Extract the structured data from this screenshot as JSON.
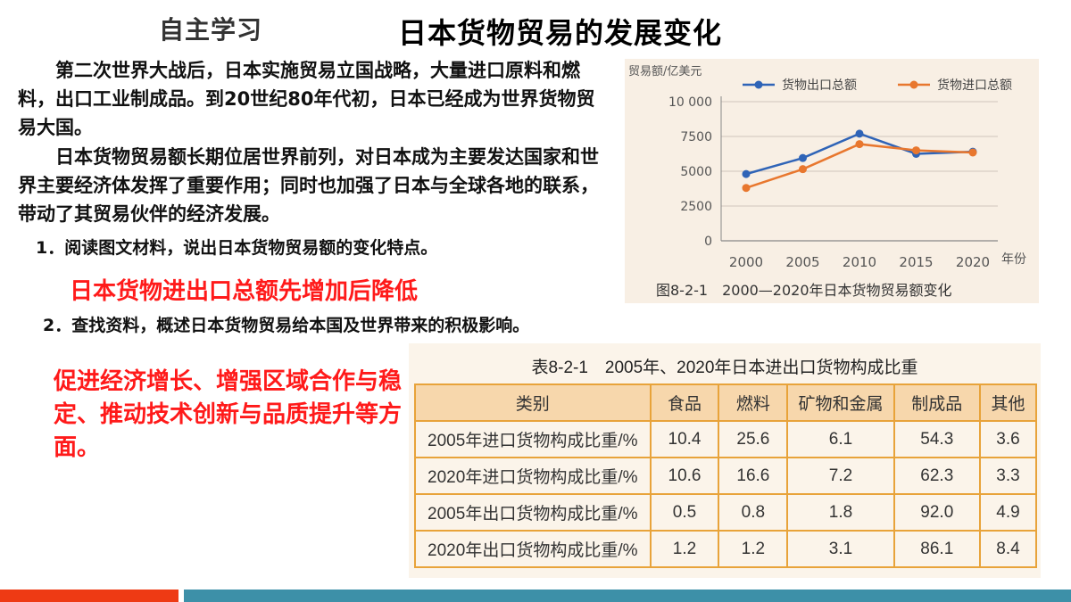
{
  "header": {
    "tag": "自主学习",
    "title": "日本货物贸易的发展变化"
  },
  "body": {
    "paragraph1": "　　第二次世界大战后，日本实施贸易立国战略，大量进口原料和燃料，出口工业制成品。到20世纪80年代初，日本已经成为世界货物贸易大国。",
    "paragraph2": "　　日本货物贸易额长期位居世界前列，对日本成为主要发达国家和世界主要经济体发挥了重要作用；同时也加强了日本与全球各地的联系，带动了其贸易伙伴的经济发展。"
  },
  "questions": {
    "q1": "1．阅读图文材料，说出日本货物贸易额的变化特点。",
    "a1": "日本货物进出口总额先增加后降低",
    "q2": "2．查找资料，概述日本货物贸易给本国及世界带来的积极影响。",
    "a2": "促进经济增长、增强区域合作与稳定、推动技术创新与品质提升等方面。"
  },
  "chart_data": {
    "type": "line",
    "title": "",
    "caption": "图8-2-1　2000—2020年日本货物贸易额变化",
    "ylabel": "贸易额/亿美元",
    "xlabel": "年份",
    "x": [
      2000,
      2005,
      2010,
      2015,
      2020
    ],
    "ylim": [
      0,
      10000
    ],
    "yticks": [
      0,
      2500,
      5000,
      7500,
      10000
    ],
    "ytick_labels": [
      "0",
      "2500",
      "5000",
      "7500",
      "10 000"
    ],
    "grid": true,
    "legend_position": "top",
    "series": [
      {
        "name": "货物出口总额",
        "color": "#2f64b7",
        "values": [
          4800,
          5950,
          7700,
          6250,
          6400
        ]
      },
      {
        "name": "货物进口总额",
        "color": "#e8772e",
        "values": [
          3800,
          5150,
          6950,
          6500,
          6350
        ]
      }
    ]
  },
  "table": {
    "caption": "表8-2-1　2005年、2020年日本进出口货物构成比重",
    "headers": [
      "类别",
      "食品",
      "燃料",
      "矿物和金属",
      "制成品",
      "其他"
    ],
    "rows": [
      [
        "2005年进口货物构成比重/%",
        "10.4",
        "25.6",
        "6.1",
        "54.3",
        "3.6"
      ],
      [
        "2020年进口货物构成比重/%",
        "10.6",
        "16.6",
        "7.2",
        "62.3",
        "3.3"
      ],
      [
        "2005年出口货物构成比重/%",
        "0.5",
        "0.8",
        "1.8",
        "92.0",
        "4.9"
      ],
      [
        "2020年出口货物构成比重/%",
        "1.2",
        "1.2",
        "3.1",
        "86.1",
        "8.4"
      ]
    ]
  },
  "colors": {
    "accent_red": "#ee3a14",
    "accent_teal": "#3d90a8",
    "answer_red": "#ff1a1a",
    "table_border": "#e8a33a"
  }
}
